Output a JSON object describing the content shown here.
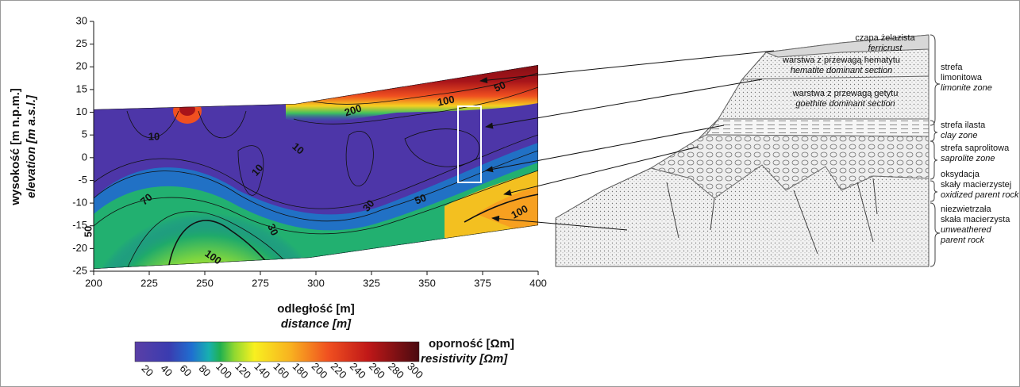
{
  "plot": {
    "xticks": [
      200,
      225,
      250,
      275,
      300,
      325,
      350,
      375,
      400
    ],
    "yticks": [
      30,
      25,
      20,
      15,
      10,
      5,
      0,
      -5,
      -10,
      -15,
      -20,
      -25
    ],
    "ylabel_pl": "wysokość [m n.p.m.]",
    "ylabel_en": "elevation [m a.s.l.]",
    "xlabel_pl": "odległość [m]",
    "xlabel_en": "distance [m]",
    "contour_labels": [
      200,
      100,
      50,
      10,
      10,
      10,
      30,
      50,
      100,
      70,
      100,
      30,
      50
    ]
  },
  "colorbar": {
    "label_pl": "oporność [Ωm]",
    "label_en": "resistivity [Ωm]",
    "ticks": [
      20,
      40,
      60,
      80,
      100,
      120,
      140,
      160,
      180,
      200,
      220,
      240,
      260,
      280,
      300
    ]
  },
  "profile": {
    "layers": [
      {
        "pl": "czapa żelazista",
        "en": "ferricrust"
      },
      {
        "pl": "warstwa z przewagą hematytu",
        "en": "hematite dominant section"
      },
      {
        "pl": "warstwa z przewagą getytu",
        "en": "goethite dominant section"
      }
    ],
    "zones": [
      {
        "pl": [
          "strefa",
          "limonitowa"
        ],
        "en": [
          "limonite zone"
        ]
      },
      {
        "pl": [
          "strefa ilasta"
        ],
        "en": [
          "clay zone"
        ]
      },
      {
        "pl": [
          "strefa saprolitowa"
        ],
        "en": [
          "saprolite zone"
        ]
      },
      {
        "pl": [
          "oksydacja",
          "skały macierzystej"
        ],
        "en": [
          "oxidized parent rock"
        ]
      },
      {
        "pl": [
          "niezwietrzała",
          "skała macierzysta"
        ],
        "en": [
          "unweathered",
          "parent rock"
        ]
      }
    ]
  }
}
